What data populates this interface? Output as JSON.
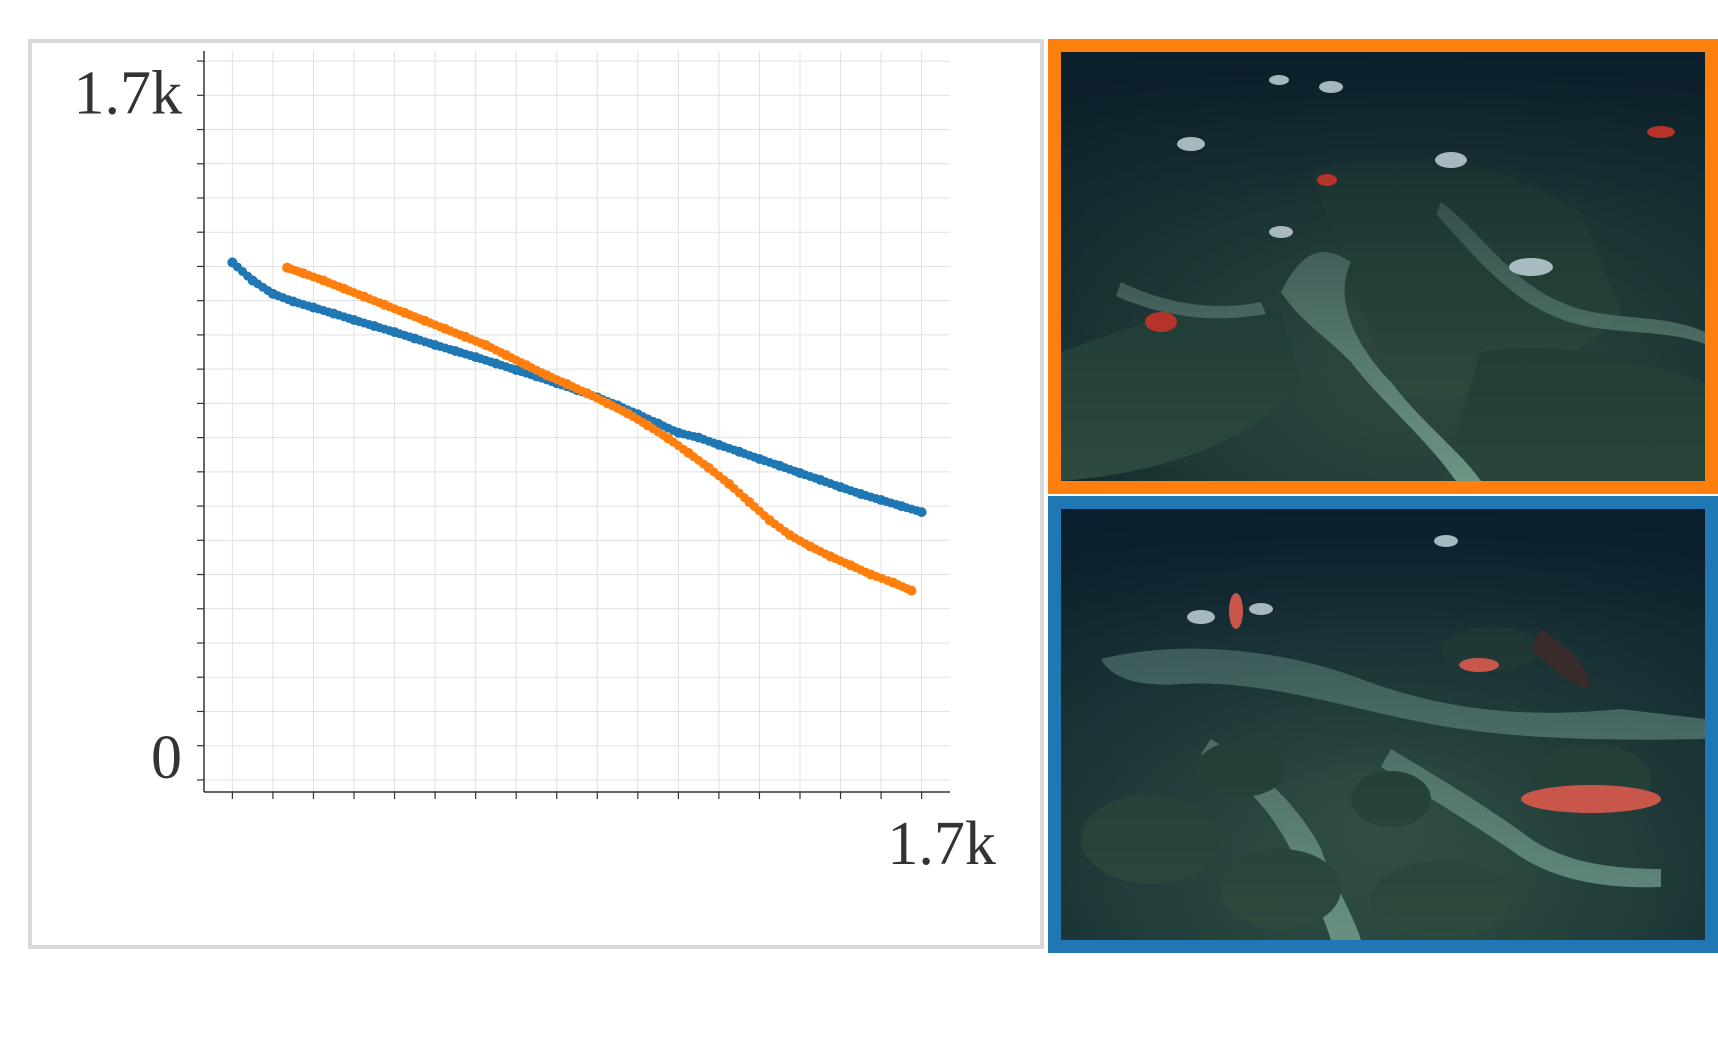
{
  "chart_data": {
    "type": "scatter",
    "title": "",
    "xlabel": "",
    "ylabel": "",
    "xlim": [
      -70,
      1770
    ],
    "ylim": [
      -30,
      1810
    ],
    "x_tick_labels": [
      {
        "value": 1700,
        "label": "1.7k"
      }
    ],
    "y_tick_labels": [
      {
        "value": 0,
        "label": "0"
      },
      {
        "value": 1700,
        "label": "1.7k"
      }
    ],
    "grid": true,
    "legend": "none",
    "series": [
      {
        "color": "#1f77b4",
        "points": [
          [
            0,
            1285
          ],
          [
            50,
            1240
          ],
          [
            100,
            1207
          ],
          [
            150,
            1188
          ],
          [
            200,
            1173
          ],
          [
            250,
            1158
          ],
          [
            300,
            1142
          ],
          [
            350,
            1127
          ],
          [
            400,
            1112
          ],
          [
            450,
            1096
          ],
          [
            500,
            1080
          ],
          [
            550,
            1065
          ],
          [
            600,
            1050
          ],
          [
            650,
            1034
          ],
          [
            700,
            1018
          ],
          [
            750,
            1002
          ],
          [
            800,
            985
          ],
          [
            850,
            968
          ],
          [
            900,
            950
          ],
          [
            950,
            930
          ],
          [
            1000,
            908
          ],
          [
            1050,
            885
          ],
          [
            1100,
            862
          ],
          [
            1150,
            850
          ],
          [
            1200,
            832
          ],
          [
            1250,
            815
          ],
          [
            1300,
            797
          ],
          [
            1350,
            780
          ],
          [
            1400,
            762
          ],
          [
            1450,
            745
          ],
          [
            1500,
            727
          ],
          [
            1550,
            710
          ],
          [
            1600,
            695
          ],
          [
            1650,
            680
          ],
          [
            1700,
            665
          ]
        ]
      },
      {
        "color": "#ff7f0e",
        "points": [
          [
            135,
            1272
          ],
          [
            175,
            1258
          ],
          [
            225,
            1240
          ],
          [
            275,
            1220
          ],
          [
            325,
            1200
          ],
          [
            375,
            1180
          ],
          [
            425,
            1160
          ],
          [
            475,
            1140
          ],
          [
            525,
            1120
          ],
          [
            575,
            1100
          ],
          [
            625,
            1080
          ],
          [
            675,
            1055
          ],
          [
            725,
            1030
          ],
          [
            775,
            1005
          ],
          [
            825,
            983
          ],
          [
            875,
            960
          ],
          [
            925,
            935
          ],
          [
            975,
            910
          ],
          [
            1025,
            880
          ],
          [
            1075,
            848
          ],
          [
            1125,
            812
          ],
          [
            1175,
            775
          ],
          [
            1225,
            735
          ],
          [
            1275,
            690
          ],
          [
            1325,
            645
          ],
          [
            1375,
            608
          ],
          [
            1425,
            580
          ],
          [
            1475,
            555
          ],
          [
            1525,
            533
          ],
          [
            1575,
            510
          ],
          [
            1630,
            490
          ],
          [
            1675,
            470
          ]
        ]
      }
    ]
  },
  "images": [
    {
      "border_color": "#ff7f0e"
    },
    {
      "border_color": "#1f77b4"
    }
  ]
}
